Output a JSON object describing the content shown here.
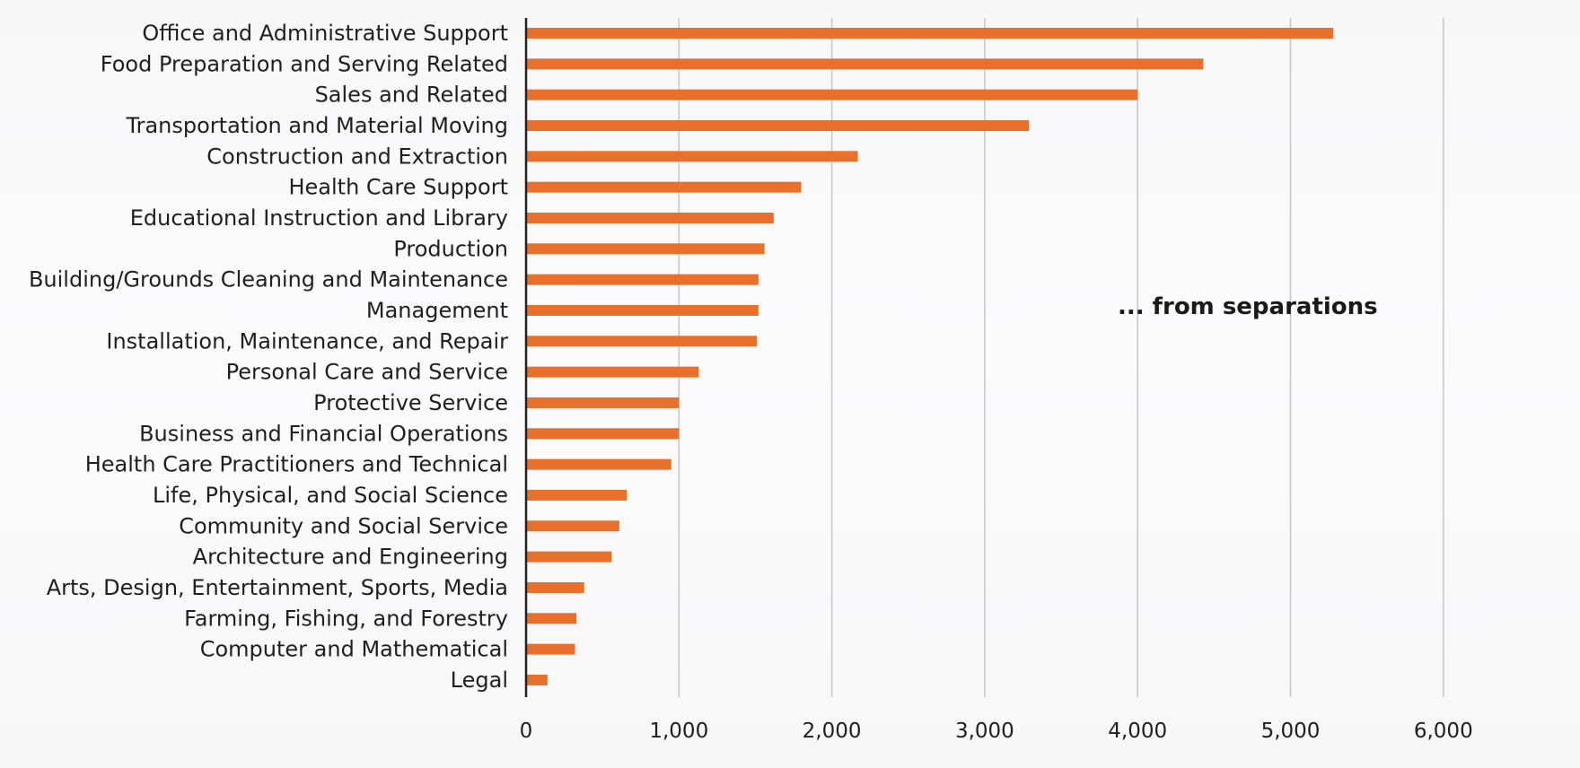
{
  "chart_data": {
    "type": "bar",
    "orientation": "horizontal",
    "categories": [
      "Office and Administrative Support",
      "Food Preparation and Serving Related",
      "Sales and Related",
      "Transportation and Material Moving",
      "Construction and Extraction",
      "Health Care Support",
      "Educational Instruction and Library",
      "Production",
      "Building/Grounds Cleaning and Maintenance",
      "Management",
      "Installation, Maintenance, and Repair",
      "Personal Care and Service",
      "Protective Service",
      "Business and Financial Operations",
      "Health Care Practitioners and Technical",
      "Life, Physical, and Social Science",
      "Community and Social Service",
      "Architecture and Engineering",
      "Arts, Design, Entertainment, Sports, Media",
      "Farming, Fishing, and Forestry",
      "Computer and Mathematical",
      "Legal"
    ],
    "values": [
      5280,
      4430,
      4000,
      3290,
      2170,
      1800,
      1620,
      1560,
      1520,
      1520,
      1510,
      1130,
      1000,
      1000,
      950,
      660,
      610,
      560,
      380,
      330,
      320,
      140
    ],
    "xlim": [
      0,
      6000
    ],
    "ticks": [
      "0",
      "1,000",
      "2,000",
      "3,000",
      "4,000",
      "5,000",
      "6,000"
    ],
    "tick_values": [
      0,
      1000,
      2000,
      3000,
      4000,
      5000,
      6000
    ],
    "grid": true,
    "annotation": "... from separations",
    "bar_color": "#e8702a",
    "grid_color": "#c6c6c6",
    "axis_color": "#222222"
  }
}
